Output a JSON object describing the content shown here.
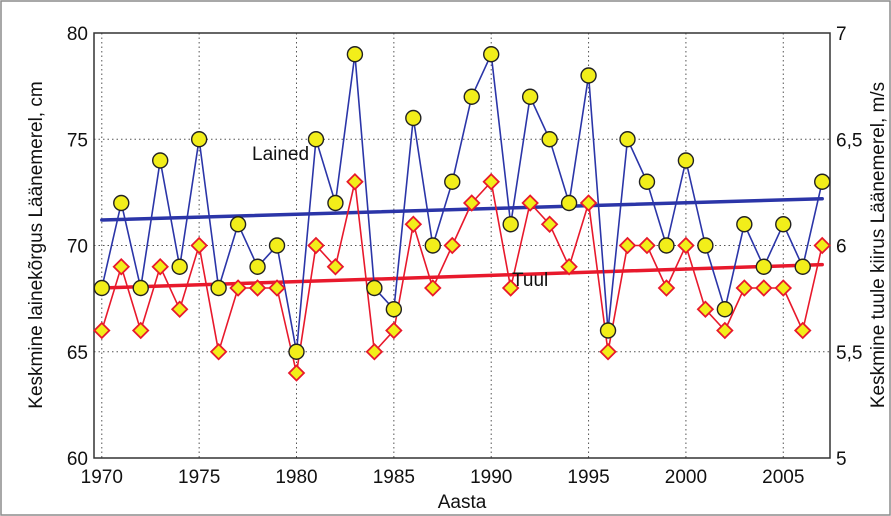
{
  "chart_data": {
    "type": "line",
    "title": "",
    "xlabel": "Aasta",
    "ylabel": "Keskmine lainekõrgus Läänemerel, cm",
    "y2label": "Keskmine tuule kiirus Läänemerel, m/s",
    "xlim": [
      1969.6,
      2007.4
    ],
    "ylim": [
      60,
      80
    ],
    "y2lim": [
      5,
      7
    ],
    "x_ticks": [
      "1970",
      "1975",
      "1980",
      "1985",
      "1990",
      "1995",
      "2000",
      "2005"
    ],
    "y_ticks": [
      "60",
      "65",
      "70",
      "75",
      "80"
    ],
    "y2_ticks": [
      "5",
      "5,5",
      "6",
      "6,5",
      "7"
    ],
    "grid": true,
    "x": [
      1970,
      1971,
      1972,
      1973,
      1974,
      1975,
      1976,
      1977,
      1978,
      1979,
      1980,
      1981,
      1982,
      1983,
      1984,
      1985,
      1986,
      1987,
      1988,
      1989,
      1990,
      1991,
      1992,
      1993,
      1994,
      1995,
      1996,
      1997,
      1998,
      1999,
      2000,
      2001,
      2002,
      2003,
      2004,
      2005,
      2006,
      2007
    ],
    "series": [
      {
        "name": "Lained",
        "axis": "left",
        "color": "#2b35a8",
        "marker_fill": "#f2ee1a",
        "values": [
          68,
          72,
          68,
          74,
          69,
          75,
          68,
          71,
          69,
          70,
          65,
          75,
          72,
          79,
          68,
          67,
          76,
          70,
          73,
          77,
          79,
          71,
          77,
          75,
          72,
          78,
          66,
          75,
          73,
          70,
          74,
          70,
          67,
          71,
          69,
          71,
          69,
          73
        ],
        "trend": [
          71.2,
          72.2
        ]
      },
      {
        "name": "Tuul",
        "axis": "right",
        "color": "#e8192c",
        "marker_fill": "#f2ee1a",
        "values": [
          5.6,
          5.9,
          5.6,
          5.9,
          5.7,
          6.0,
          5.5,
          5.8,
          5.8,
          5.8,
          5.4,
          6.0,
          5.9,
          6.3,
          5.5,
          5.6,
          6.1,
          5.8,
          6.0,
          6.2,
          6.3,
          5.8,
          6.2,
          6.1,
          5.9,
          6.2,
          5.5,
          6.0,
          6.0,
          5.8,
          6.0,
          5.7,
          5.6,
          5.8,
          5.8,
          5.8,
          5.6,
          6.0
        ],
        "trend": [
          5.8,
          5.91
        ]
      }
    ],
    "annotations": [
      "Lained",
      "Tuul"
    ]
  }
}
